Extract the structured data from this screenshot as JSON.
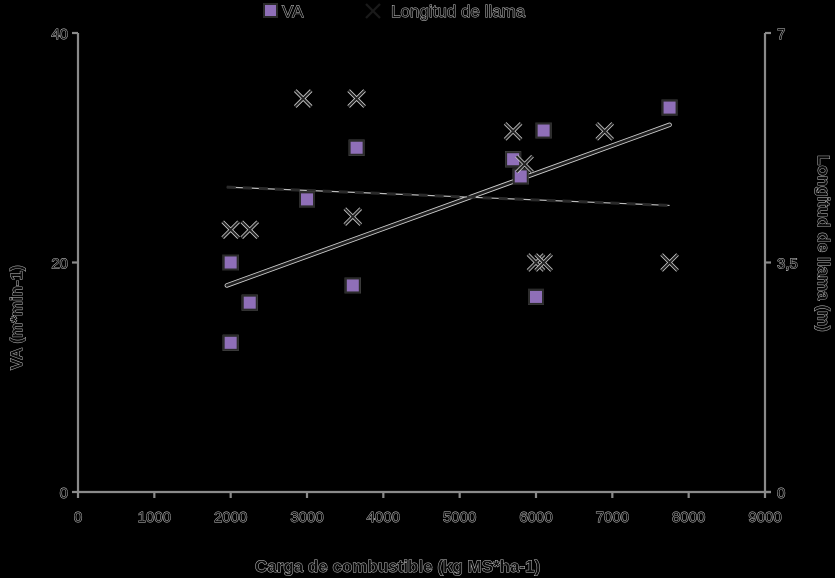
{
  "legend": {
    "items": [
      {
        "label": "VA",
        "marker": "square",
        "color": "#8f6fb8"
      },
      {
        "label": "Longitud de llama",
        "marker": "x",
        "color": "#222222"
      }
    ]
  },
  "axes": {
    "x_title": "Carga de combustible  (kg  MS*ha-1)",
    "y_left_title": "VA (m*min-1)",
    "y_right_title": "Longitud de llama  (m)",
    "x_ticks": [
      "0",
      "1000",
      "2000",
      "3000",
      "4000",
      "5000",
      "6000",
      "7000",
      "8000",
      "9000"
    ],
    "y_left_ticks": [
      "0",
      "20",
      "40"
    ],
    "y_right_ticks": [
      "0",
      "3,5",
      "7"
    ]
  },
  "chart_data": {
    "type": "scatter",
    "title": "",
    "xlabel": "Carga de combustible (kg MS*ha-1)",
    "ylabel": "VA (m*min-1)",
    "y2label": "Longitud de llama (m)",
    "xlim": [
      0,
      9000
    ],
    "ylim": [
      0,
      40
    ],
    "y2lim": [
      0,
      7
    ],
    "grid": false,
    "legend_position": "top",
    "series": [
      {
        "name": "VA",
        "axis": "left",
        "marker": "square",
        "color": "#8f6fb8",
        "points": [
          [
            2000,
            20
          ],
          [
            2000,
            13
          ],
          [
            2250,
            16.5
          ],
          [
            3000,
            25.5
          ],
          [
            3650,
            30
          ],
          [
            3600,
            18
          ],
          [
            5700,
            29
          ],
          [
            5800,
            27.5
          ],
          [
            6100,
            31.5
          ],
          [
            6000,
            17
          ],
          [
            7750,
            33.5
          ]
        ],
        "trendline": {
          "style": "solid",
          "from": [
            1950,
            18
          ],
          "to": [
            7750,
            32
          ]
        }
      },
      {
        "name": "Longitud de llama",
        "axis": "right",
        "marker": "x",
        "color": "#222222",
        "points": [
          [
            2000,
            4.0
          ],
          [
            2250,
            4.0
          ],
          [
            2950,
            6.0
          ],
          [
            3650,
            6.0
          ],
          [
            3600,
            4.2
          ],
          [
            5700,
            5.5
          ],
          [
            5850,
            5.0
          ],
          [
            6900,
            5.5
          ],
          [
            6000,
            3.5
          ],
          [
            6100,
            3.5
          ],
          [
            7750,
            3.5
          ]
        ],
        "trendline": {
          "style": "dashed",
          "from": [
            1950,
            4.65
          ],
          "to": [
            7750,
            4.37
          ]
        }
      }
    ]
  }
}
